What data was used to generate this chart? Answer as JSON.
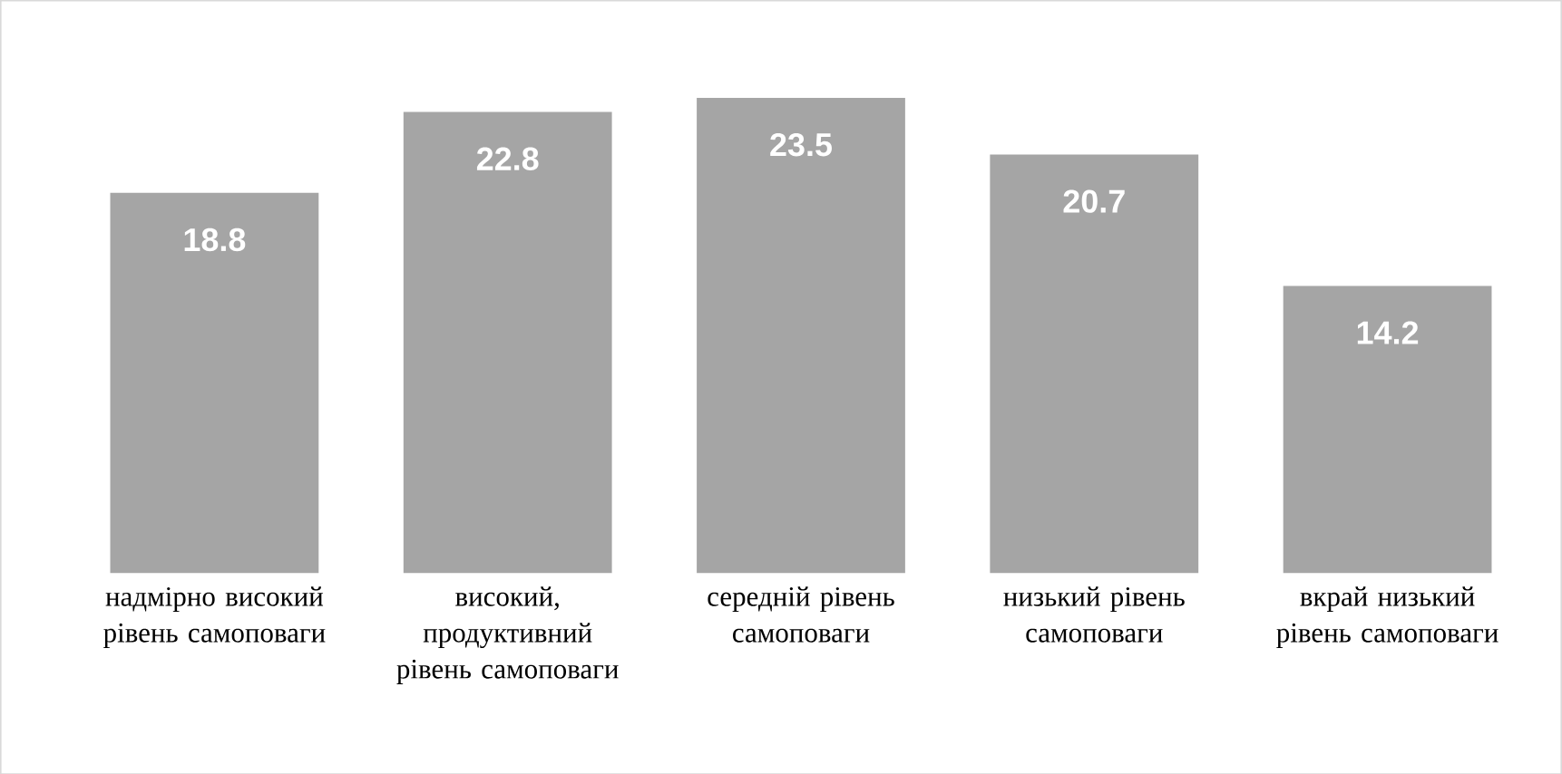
{
  "chart_data": {
    "type": "bar",
    "categories": [
      "надмірно високий рівень самоповаги",
      "високий, продуктивний рівень самоповаги",
      "середній рівень самоповаги",
      "низький рівень самоповаги",
      "вкрай низький рівень самоповаги"
    ],
    "values": [
      18.8,
      22.8,
      23.5,
      20.7,
      14.2
    ],
    "color": "#a5a5a5",
    "data_labels": true
  }
}
